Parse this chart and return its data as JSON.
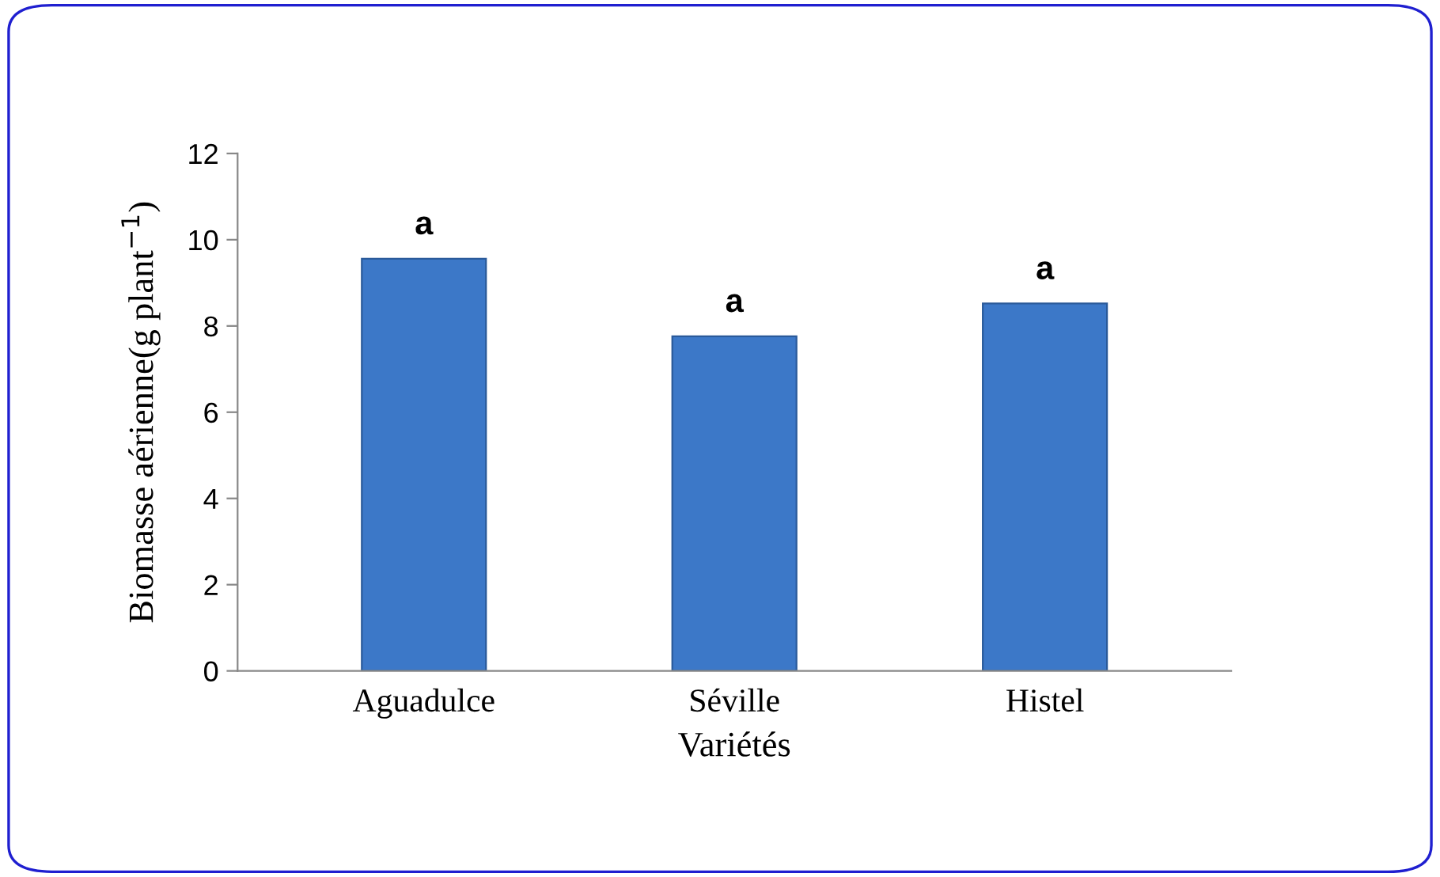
{
  "chart_data": {
    "type": "bar",
    "xlabel": "Variétés",
    "ylabel": "Biomasse aérienne(g plant$^{−1}$)",
    "categories": [
      "Aguadulce",
      "Séville",
      "Histel"
    ],
    "values": [
      9.56,
      7.76,
      8.52
    ],
    "color": "#3c78c8",
    "ylim": [
      0,
      12
    ],
    "yticks": [
      0,
      2,
      4,
      6,
      8,
      10,
      12
    ],
    "grid": false,
    "annotations": [
      {
        "text": "a",
        "x": "Aguadulce",
        "y": 9.56
      },
      {
        "text": "a",
        "x": "Séville",
        "y": 7.76
      },
      {
        "text": "a",
        "x": "Histel",
        "y": 8.52
      }
    ]
  }
}
